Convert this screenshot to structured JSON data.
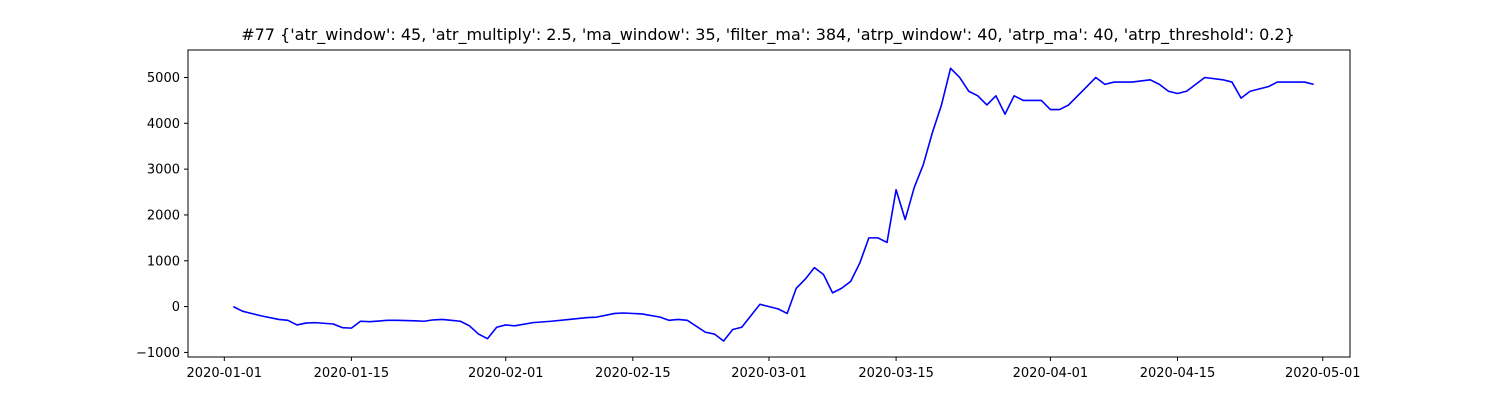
{
  "chart_data": {
    "type": "line",
    "title": "#77 {'atr_window': 45, 'atr_multiply': 2.5, 'ma_window': 35, 'filter_ma': 384, 'atrp_window': 40, 'atrp_ma': 40, 'atrp_threshold': 0.2}",
    "xlabel": "",
    "ylabel": "",
    "grid": false,
    "legend": "none",
    "xlim": [
      "2019-12-28",
      "2020-05-04"
    ],
    "ylim": [
      -1100,
      5600
    ],
    "x_ticks": [
      "2020-01-01",
      "2020-01-15",
      "2020-02-01",
      "2020-02-15",
      "2020-03-01",
      "2020-03-15",
      "2020-04-01",
      "2020-04-15",
      "2020-05-01"
    ],
    "y_ticks": [
      -1000,
      0,
      1000,
      2000,
      3000,
      4000,
      5000
    ],
    "series": [
      {
        "color": "#0000ff",
        "x": [
          "2020-01-02",
          "2020-01-03",
          "2020-01-04",
          "2020-01-05",
          "2020-01-07",
          "2020-01-08",
          "2020-01-09",
          "2020-01-10",
          "2020-01-11",
          "2020-01-13",
          "2020-01-14",
          "2020-01-15",
          "2020-01-16",
          "2020-01-17",
          "2020-01-19",
          "2020-01-20",
          "2020-01-22",
          "2020-01-23",
          "2020-01-24",
          "2020-01-25",
          "2020-01-26",
          "2020-01-27",
          "2020-01-28",
          "2020-01-29",
          "2020-01-30",
          "2020-01-31",
          "2020-02-01",
          "2020-02-02",
          "2020-02-04",
          "2020-02-06",
          "2020-02-08",
          "2020-02-10",
          "2020-02-11",
          "2020-02-13",
          "2020-02-14",
          "2020-02-16",
          "2020-02-18",
          "2020-02-19",
          "2020-02-20",
          "2020-02-21",
          "2020-02-23",
          "2020-02-24",
          "2020-02-25",
          "2020-02-26",
          "2020-02-27",
          "2020-02-28",
          "2020-02-29",
          "2020-03-01",
          "2020-03-02",
          "2020-03-03",
          "2020-03-04",
          "2020-03-05",
          "2020-03-06",
          "2020-03-07",
          "2020-03-08",
          "2020-03-09",
          "2020-03-10",
          "2020-03-11",
          "2020-03-12",
          "2020-03-13",
          "2020-03-14",
          "2020-03-15",
          "2020-03-16",
          "2020-03-17",
          "2020-03-18",
          "2020-03-19",
          "2020-03-20",
          "2020-03-21",
          "2020-03-22",
          "2020-03-23",
          "2020-03-24",
          "2020-03-25",
          "2020-03-26",
          "2020-03-27",
          "2020-03-28",
          "2020-03-29",
          "2020-03-30",
          "2020-03-31",
          "2020-04-01",
          "2020-04-02",
          "2020-04-03",
          "2020-04-05",
          "2020-04-06",
          "2020-04-07",
          "2020-04-08",
          "2020-04-09",
          "2020-04-10",
          "2020-04-12",
          "2020-04-13",
          "2020-04-14",
          "2020-04-15",
          "2020-04-16",
          "2020-04-17",
          "2020-04-18",
          "2020-04-20",
          "2020-04-21",
          "2020-04-22",
          "2020-04-23",
          "2020-04-25",
          "2020-04-26",
          "2020-04-27",
          "2020-04-28",
          "2020-04-29",
          "2020-04-30"
        ],
        "y": [
          0,
          -100,
          -150,
          -200,
          -280,
          -300,
          -400,
          -360,
          -350,
          -380,
          -460,
          -470,
          -320,
          -330,
          -300,
          -300,
          -310,
          -320,
          -290,
          -280,
          -300,
          -320,
          -420,
          -600,
          -700,
          -450,
          -400,
          -420,
          -350,
          -320,
          -280,
          -240,
          -230,
          -150,
          -140,
          -160,
          -230,
          -300,
          -280,
          -300,
          -560,
          -600,
          -750,
          -500,
          -450,
          -200,
          50,
          0,
          -50,
          -150,
          400,
          600,
          850,
          700,
          300,
          400,
          550,
          950,
          1500,
          1500,
          1400,
          2550,
          1900,
          2600,
          3100,
          3800,
          4400,
          5200,
          5000,
          4700,
          4600,
          4400,
          4600,
          4200,
          4600,
          4500,
          4500,
          4500,
          4300,
          4300,
          4400,
          4800,
          5000,
          4850,
          4900,
          4900,
          4900,
          4950,
          4850,
          4700,
          4650,
          4700,
          4850,
          5000,
          4950,
          4900,
          4550,
          4700,
          4800,
          4900,
          4900,
          4900,
          4900,
          4850
        ]
      }
    ]
  }
}
